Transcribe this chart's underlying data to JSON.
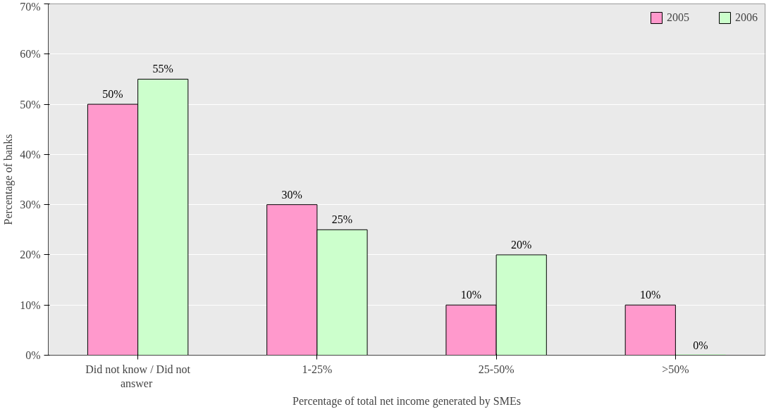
{
  "chart_data": {
    "type": "bar",
    "xlabel": "Percentage of total net income generated by SMEs",
    "ylabel": "Percentage of banks",
    "categories": [
      "Did not know / Did not answer",
      "1-25%",
      "25-50%",
      ">50%"
    ],
    "series": [
      {
        "name": "2005",
        "color": "#ff99cc",
        "values": [
          50,
          30,
          10,
          10
        ],
        "value_labels": [
          "50%",
          "30%",
          "10%",
          "10%"
        ]
      },
      {
        "name": "2006",
        "color": "#ccffcc",
        "values": [
          55,
          25,
          20,
          0
        ],
        "value_labels": [
          "55%",
          "25%",
          "20%",
          "0%"
        ]
      }
    ],
    "ylim": [
      0,
      70
    ],
    "yticks": [
      {
        "value": 0,
        "label": "0%"
      },
      {
        "value": 10,
        "label": "10%"
      },
      {
        "value": 20,
        "label": "20%"
      },
      {
        "value": 30,
        "label": "30%"
      },
      {
        "value": 40,
        "label": "40%"
      },
      {
        "value": 50,
        "label": "50%"
      },
      {
        "value": 60,
        "label": "60%"
      },
      {
        "value": 70,
        "label": "70%"
      }
    ],
    "grid": "y",
    "legend": "top right"
  }
}
